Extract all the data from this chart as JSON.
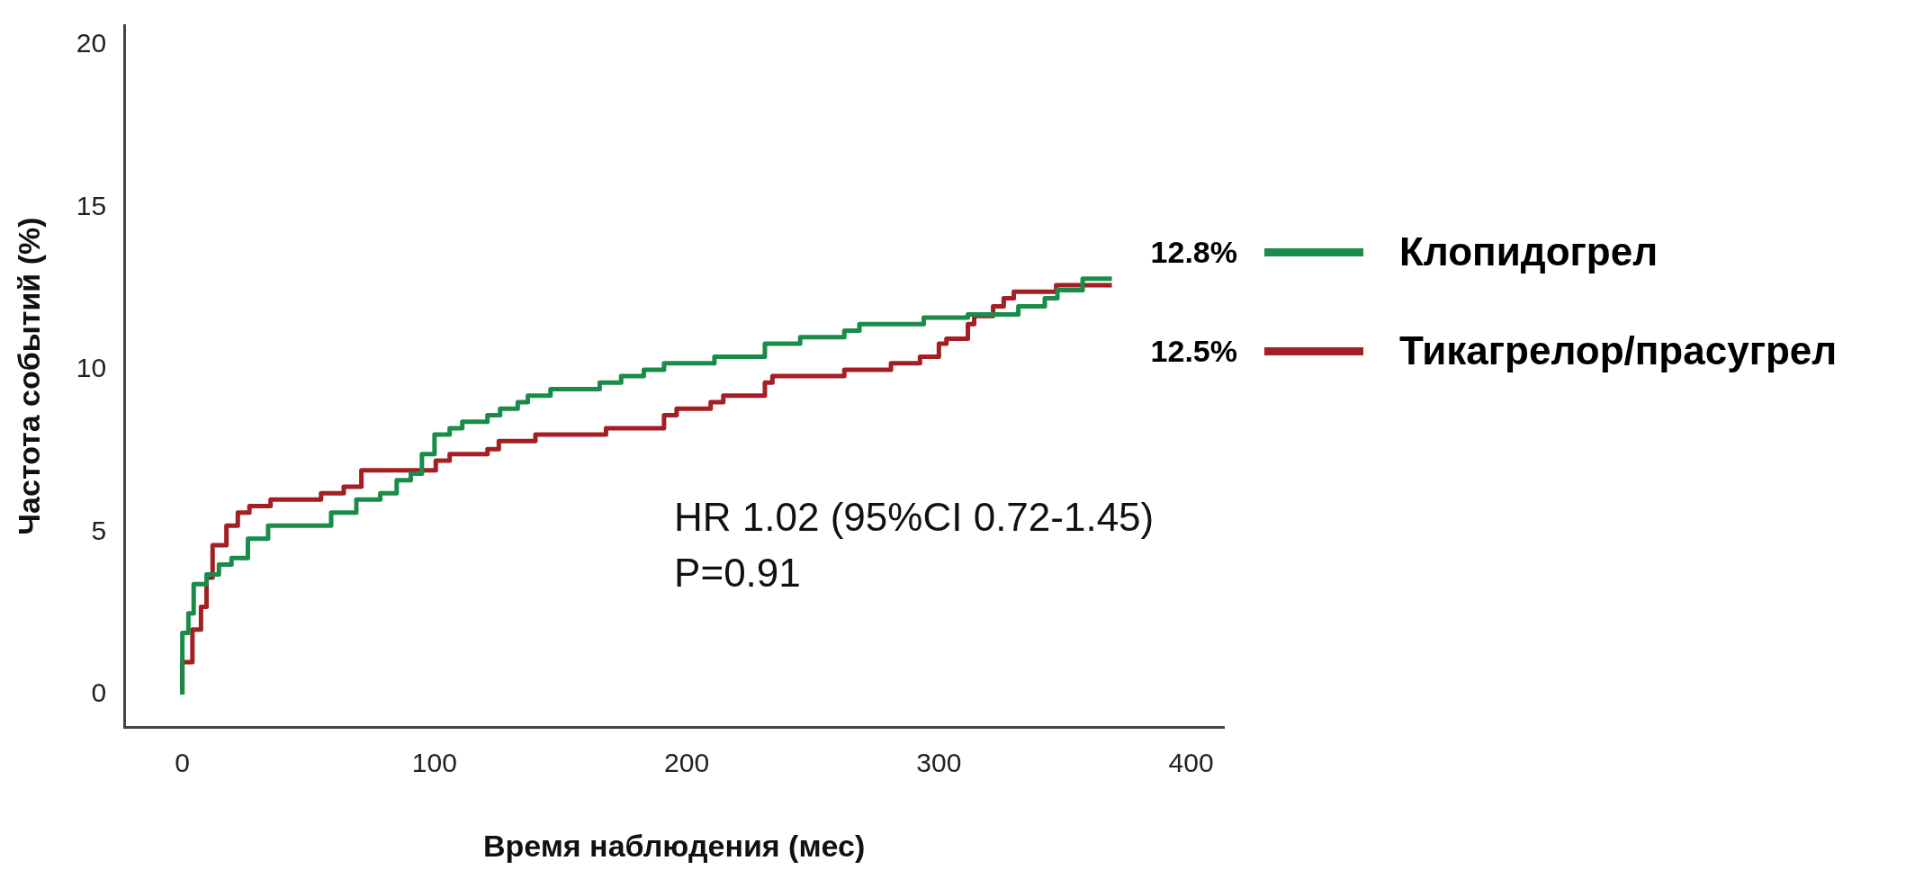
{
  "chart_data": {
    "type": "step",
    "xlabel": "Время наблюдения (мес)",
    "ylabel": "Частота событий (%)",
    "xlim": [
      -23,
      413
    ],
    "ylim": [
      -1,
      20.6
    ],
    "xticks": [
      0,
      100,
      200,
      300,
      400
    ],
    "yticks": [
      0,
      5,
      10,
      15,
      20
    ],
    "grid": false,
    "legend": "right",
    "marker": "none",
    "line_style": "solid",
    "annotations": [
      "12.8%",
      "12.5%",
      "HR 1.02 (95%CI 0.72-1.45)",
      "P=0.91"
    ],
    "series": [
      {
        "name": "Клопидогрел",
        "color": "#1a8c4a",
        "x": [
          0,
          2.4,
          4.5,
          9.6,
          14.5,
          19.5,
          26,
          34,
          59,
          69,
          78.5,
          85,
          90.6,
          95,
          100,
          106,
          111,
          121,
          126,
          133,
          137,
          146,
          165.5,
          174,
          183,
          191,
          211,
          231,
          245,
          262.5,
          268.5,
          294,
          311.5,
          331.5,
          342,
          347,
          357,
          363,
          368.6
        ],
        "values": [
          0,
          1.9,
          2.5,
          3.4,
          3.7,
          4.0,
          4.2,
          4.8,
          5.2,
          5.6,
          6.0,
          6.2,
          6.6,
          6.8,
          7.4,
          8.0,
          8.2,
          8.4,
          8.6,
          8.8,
          9.0,
          9.2,
          9.4,
          9.6,
          9.8,
          10.0,
          10.2,
          10.4,
          10.8,
          11.0,
          11.2,
          11.4,
          11.6,
          11.7,
          11.95,
          12.2,
          12.45,
          12.8,
          12.8
        ]
      },
      {
        "name": "Тикагрелор/прасугрел",
        "color": "#a31f24",
        "x": [
          0,
          4,
          7.4,
          9.6,
          12,
          17.5,
          22,
          26.6,
          35,
          55,
          64,
          71,
          100.5,
          106,
          121,
          125.5,
          140,
          168,
          191,
          196,
          209.5,
          214.5,
          231,
          234,
          262.5,
          281,
          292.5,
          300,
          303,
          311.5,
          314,
          321.5,
          325.7,
          329.7,
          346.5,
          350.6,
          368.6
        ],
        "values": [
          0,
          1.0,
          2.0,
          2.7,
          3.6,
          4.6,
          5.2,
          5.6,
          5.8,
          6.0,
          6.2,
          6.4,
          6.9,
          7.2,
          7.4,
          7.55,
          7.8,
          8.0,
          8.2,
          8.6,
          8.8,
          9.0,
          9.2,
          9.6,
          9.8,
          10.0,
          10.2,
          10.4,
          10.8,
          10.95,
          11.4,
          11.65,
          11.95,
          12.2,
          12.4,
          12.6,
          12.6
        ]
      }
    ]
  }
}
